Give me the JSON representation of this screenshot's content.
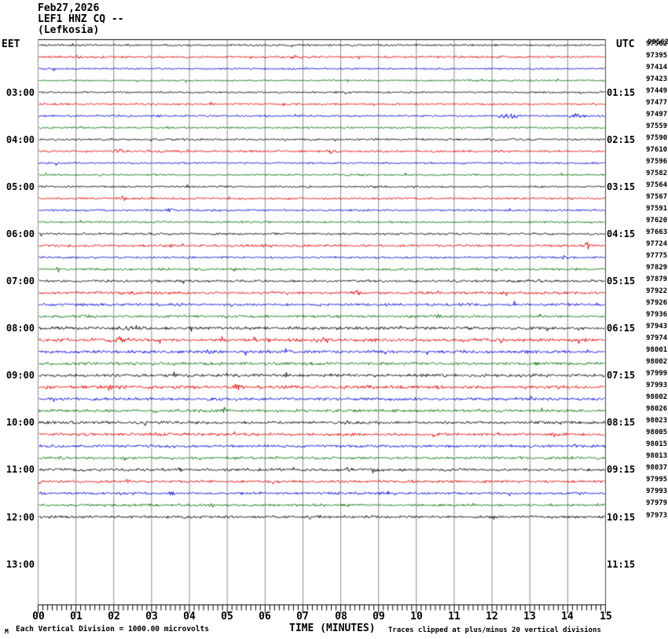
{
  "header": {
    "title_date": "Feb27,2026",
    "title_station": "LEF1 HNZ CQ --",
    "title_location": "(Lefkosia)",
    "left_axis_label": "EET",
    "right_axis_label": "UTC"
  },
  "footer": {
    "marker": "M",
    "scale_note": "Each Vertical Division = 1000.00 microvolts",
    "xaxis_title": "TIME (MINUTES)",
    "clip_note": "Traces clipped at plus/minus 20 vertical divisions"
  },
  "colors": {
    "black": "#000000",
    "red": "#e00000",
    "blue": "#0000d8",
    "green": "#007000",
    "grid": "#8c8c8c",
    "frame": "#000000"
  },
  "chart_data": {
    "type": "line",
    "subtype": "helicorder-seismogram",
    "title": "Feb27,2026 LEF1 HNZ CQ -- (Lefkosia)",
    "xlabel": "TIME (MINUTES)",
    "x_range_minutes": [
      0,
      15
    ],
    "x_ticks": [
      "00",
      "01",
      "02",
      "03",
      "04",
      "05",
      "06",
      "07",
      "08",
      "09",
      "10",
      "11",
      "12",
      "13",
      "14",
      "15"
    ],
    "x_minor_subdivisions": 8,
    "grid": true,
    "left_axis": "EET",
    "right_axis": "UTC",
    "minutes_per_line": 15,
    "left_time_labels": [
      {
        "row": 4,
        "label": "03:00"
      },
      {
        "row": 8,
        "label": "04:00"
      },
      {
        "row": 12,
        "label": "05:00"
      },
      {
        "row": 16,
        "label": "06:00"
      },
      {
        "row": 20,
        "label": "07:00"
      },
      {
        "row": 24,
        "label": "08:00"
      },
      {
        "row": 28,
        "label": "09:00"
      },
      {
        "row": 32,
        "label": "10:00"
      },
      {
        "row": 36,
        "label": "11:00"
      },
      {
        "row": 40,
        "label": "12:00"
      },
      {
        "row": 44,
        "label": "13:00"
      }
    ],
    "right_time_labels": [
      {
        "row": 4,
        "label": "01:15"
      },
      {
        "row": 8,
        "label": "02:15"
      },
      {
        "row": 12,
        "label": "03:15"
      },
      {
        "row": 16,
        "label": "04:15"
      },
      {
        "row": 20,
        "label": "05:15"
      },
      {
        "row": 24,
        "label": "06:15"
      },
      {
        "row": 28,
        "label": "07:15"
      },
      {
        "row": 32,
        "label": "08:15"
      },
      {
        "row": 36,
        "label": "09:15"
      },
      {
        "row": 40,
        "label": "10:15"
      },
      {
        "row": 44,
        "label": "11:15"
      }
    ],
    "first_value_overlap": "99562",
    "rows": [
      {
        "color": "black",
        "value": "97562",
        "amp": 0.9,
        "bursts": []
      },
      {
        "color": "red",
        "value": "97395",
        "amp": 1.0,
        "bursts": [
          [
            0.08,
            1.2,
            40
          ],
          [
            0.45,
            1.2,
            30
          ]
        ]
      },
      {
        "color": "blue",
        "value": "97414",
        "amp": 0.8,
        "bursts": []
      },
      {
        "color": "green",
        "value": "97423",
        "amp": 0.8,
        "bursts": []
      },
      {
        "color": "black",
        "value": "97449",
        "amp": 0.85,
        "bursts": []
      },
      {
        "color": "red",
        "value": "97477",
        "amp": 0.9,
        "bursts": [
          [
            0.2,
            1.5,
            12
          ]
        ]
      },
      {
        "color": "blue",
        "value": "97497",
        "amp": 0.9,
        "bursts": [
          [
            0.827,
            3.8,
            14
          ],
          [
            0.944,
            2.8,
            10
          ]
        ]
      },
      {
        "color": "green",
        "value": "97559",
        "amp": 0.85,
        "bursts": []
      },
      {
        "color": "black",
        "value": "97590",
        "amp": 0.95,
        "bursts": []
      },
      {
        "color": "red",
        "value": "97610",
        "amp": 1.0,
        "bursts": [
          [
            0.14,
            2.2,
            8
          ],
          [
            0.52,
            1.8,
            8
          ]
        ]
      },
      {
        "color": "blue",
        "value": "97596",
        "amp": 0.9,
        "bursts": []
      },
      {
        "color": "green",
        "value": "97582",
        "amp": 0.85,
        "bursts": []
      },
      {
        "color": "black",
        "value": "97564",
        "amp": 0.85,
        "bursts": []
      },
      {
        "color": "red",
        "value": "97567",
        "amp": 1.0,
        "bursts": [
          [
            0.15,
            2.6,
            7
          ],
          [
            0.44,
            1.8,
            6
          ]
        ]
      },
      {
        "color": "blue",
        "value": "97591",
        "amp": 0.9,
        "bursts": [
          [
            0.235,
            2.2,
            5
          ]
        ]
      },
      {
        "color": "green",
        "value": "97620",
        "amp": 0.9,
        "bursts": []
      },
      {
        "color": "black",
        "value": "97663",
        "amp": 1.0,
        "bursts": []
      },
      {
        "color": "red",
        "value": "97724",
        "amp": 1.1,
        "bursts": [
          [
            0.968,
            6.5,
            3
          ],
          [
            0.4,
            1.8,
            10
          ]
        ]
      },
      {
        "color": "blue",
        "value": "97775",
        "amp": 1.0,
        "bursts": [
          [
            0.93,
            1.8,
            8
          ]
        ]
      },
      {
        "color": "green",
        "value": "97829",
        "amp": 1.1,
        "bursts": []
      },
      {
        "color": "black",
        "value": "97879",
        "amp": 1.1,
        "bursts": [
          [
            0.89,
            1.8,
            6
          ]
        ]
      },
      {
        "color": "red",
        "value": "97922",
        "amp": 1.25,
        "bursts": [
          [
            0.16,
            2.2,
            10
          ],
          [
            0.56,
            2.2,
            8
          ]
        ]
      },
      {
        "color": "blue",
        "value": "97926",
        "amp": 1.2,
        "bursts": [
          [
            0.25,
            1.8,
            10
          ]
        ]
      },
      {
        "color": "green",
        "value": "97936",
        "amp": 1.2,
        "bursts": [
          [
            0.7,
            1.8,
            10
          ]
        ]
      },
      {
        "color": "black",
        "value": "97943",
        "amp": 1.45,
        "bursts": [
          [
            0.15,
            2.2,
            10
          ],
          [
            0.9,
            1.8,
            6
          ]
        ]
      },
      {
        "color": "red",
        "value": "97974",
        "amp": 1.55,
        "bursts": [
          [
            0.145,
            3.2,
            16
          ],
          [
            0.5,
            2.4,
            10
          ],
          [
            0.76,
            1.8,
            8
          ]
        ]
      },
      {
        "color": "blue",
        "value": "98001",
        "amp": 1.4,
        "bursts": [
          [
            0.3,
            1.8,
            8
          ]
        ]
      },
      {
        "color": "green",
        "value": "98002",
        "amp": 1.35,
        "bursts": [
          [
            0.88,
            2.2,
            6
          ]
        ]
      },
      {
        "color": "black",
        "value": "97999",
        "amp": 1.45,
        "bursts": [
          [
            0.55,
            1.8,
            8
          ]
        ]
      },
      {
        "color": "red",
        "value": "97993",
        "amp": 1.55,
        "bursts": [
          [
            0.13,
            3.8,
            12
          ],
          [
            0.35,
            2.6,
            8
          ]
        ]
      },
      {
        "color": "blue",
        "value": "98002",
        "amp": 1.4,
        "bursts": [
          [
            0.87,
            2.2,
            8
          ]
        ]
      },
      {
        "color": "green",
        "value": "98026",
        "amp": 1.3,
        "bursts": [
          [
            0.33,
            3.2,
            4
          ],
          [
            0.21,
            2.2,
            5
          ]
        ]
      },
      {
        "color": "black",
        "value": "98023",
        "amp": 1.35,
        "bursts": []
      },
      {
        "color": "red",
        "value": "98005",
        "amp": 1.3,
        "bursts": [
          [
            0.2,
            1.8,
            8
          ]
        ]
      },
      {
        "color": "blue",
        "value": "98015",
        "amp": 1.3,
        "bursts": []
      },
      {
        "color": "green",
        "value": "98013",
        "amp": 1.2,
        "bursts": []
      },
      {
        "color": "black",
        "value": "98037",
        "amp": 1.3,
        "bursts": [
          [
            0.55,
            3.2,
            5
          ],
          [
            0.25,
            1.8,
            6
          ]
        ]
      },
      {
        "color": "red",
        "value": "97995",
        "amp": 1.2,
        "bursts": [
          [
            0.16,
            2.4,
            6
          ]
        ]
      },
      {
        "color": "blue",
        "value": "97993",
        "amp": 1.2,
        "bursts": [
          [
            0.235,
            3.2,
            7
          ],
          [
            0.62,
            1.8,
            8
          ]
        ]
      },
      {
        "color": "green",
        "value": "97979",
        "amp": 1.2,
        "bursts": [
          [
            0.305,
            3.2,
            6
          ],
          [
            0.76,
            2.2,
            8
          ]
        ]
      },
      {
        "color": "black",
        "value": "97973",
        "amp": 1.3,
        "bursts": [
          [
            0.5,
            1.8,
            10
          ]
        ]
      }
    ]
  }
}
